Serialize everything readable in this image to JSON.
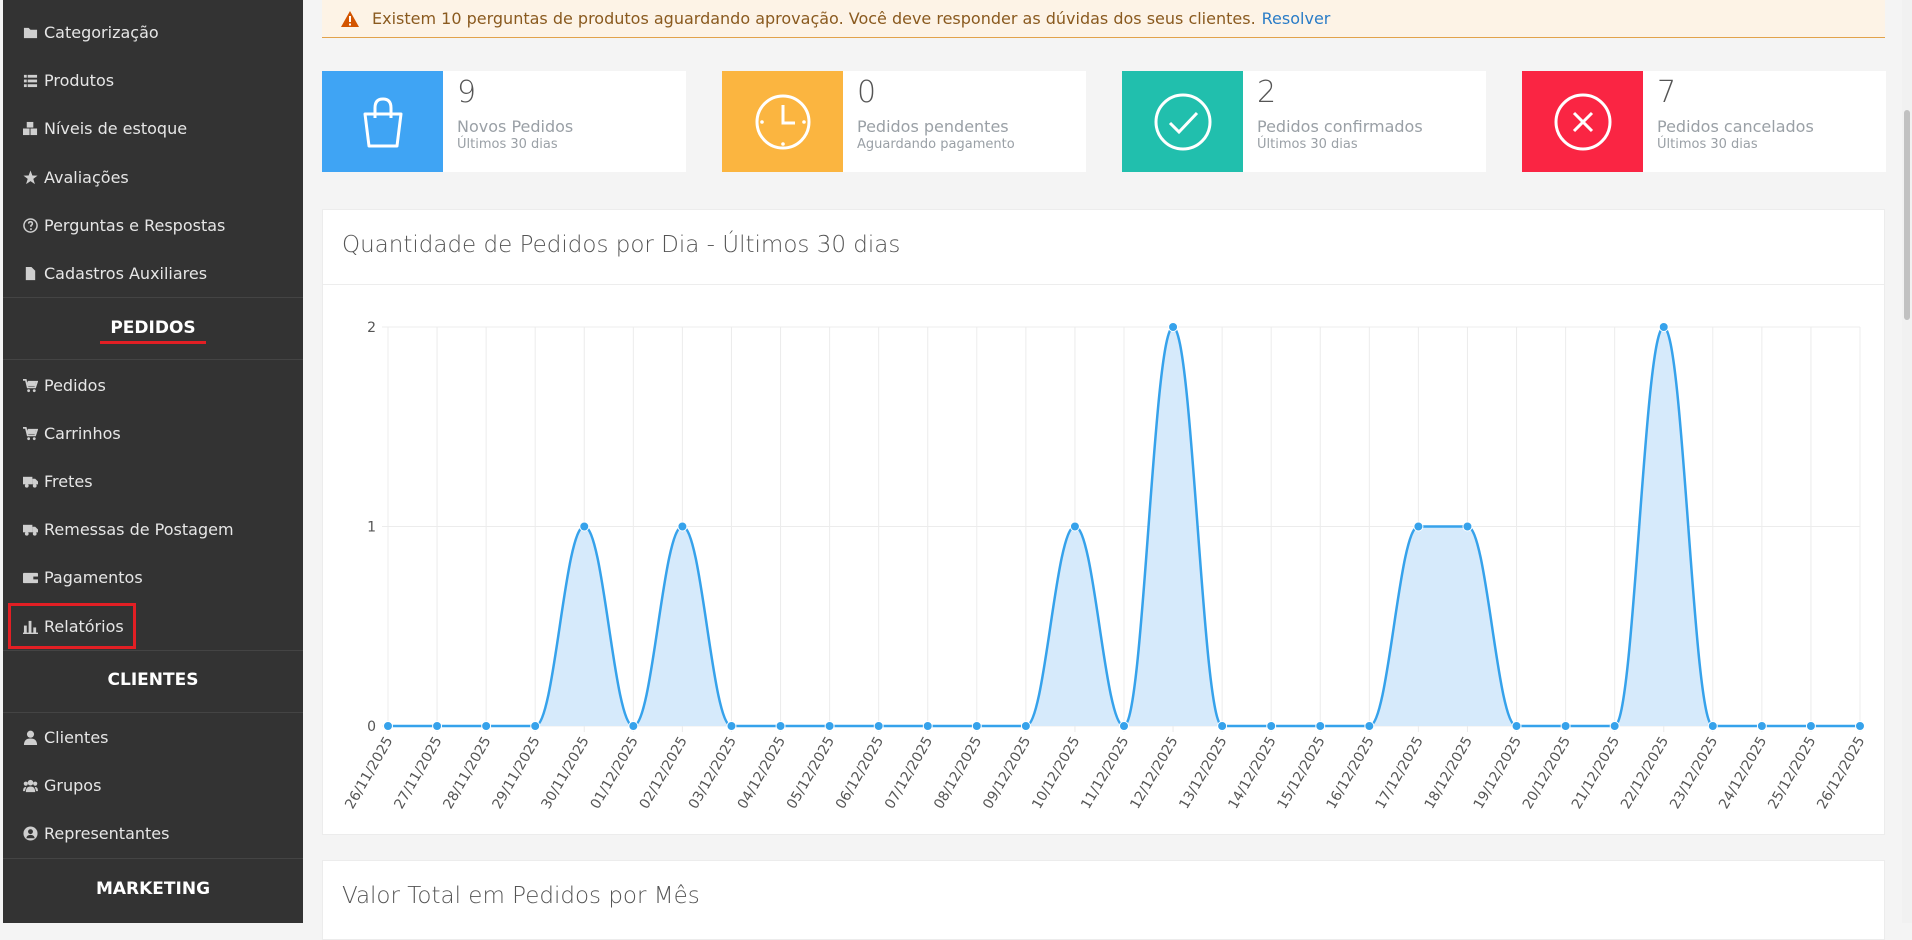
{
  "sidebar": {
    "items_top": [
      {
        "label": "Categorização",
        "icon": "folder-icon"
      },
      {
        "label": "Produtos",
        "icon": "list-icon"
      },
      {
        "label": "Níveis de estoque",
        "icon": "cubes-icon"
      },
      {
        "label": "Avaliações",
        "icon": "star-icon"
      },
      {
        "label": "Perguntas e Respostas",
        "icon": "question-circle-icon"
      },
      {
        "label": "Cadastros Auxiliares",
        "icon": "file-icon"
      }
    ],
    "section_pedidos": "PEDIDOS",
    "items_pedidos": [
      {
        "label": "Pedidos",
        "icon": "cart-icon"
      },
      {
        "label": "Carrinhos",
        "icon": "cart-icon"
      },
      {
        "label": "Fretes",
        "icon": "truck-icon"
      },
      {
        "label": "Remessas de Postagem",
        "icon": "truck-icon"
      },
      {
        "label": "Pagamentos",
        "icon": "wallet-icon"
      },
      {
        "label": "Relatórios",
        "icon": "bar-chart-icon"
      }
    ],
    "section_clientes": "CLIENTES",
    "items_clientes": [
      {
        "label": "Clientes",
        "icon": "user-icon"
      },
      {
        "label": "Grupos",
        "icon": "users-icon"
      },
      {
        "label": "Representantes",
        "icon": "user-circle-icon"
      }
    ],
    "section_marketing": "MARKETING"
  },
  "alert": {
    "text": "Existem 10 perguntas de produtos aguardando aprovação. Você deve responder as dúvidas dos seus clientes.",
    "link": "Resolver",
    "icon": "warning-icon"
  },
  "cards": [
    {
      "value": "9",
      "label": "Novos Pedidos",
      "sub": "Últimos 30 dias",
      "color": "#3fa4f4",
      "icon": "shopping-bag-icon"
    },
    {
      "value": "0",
      "label": "Pedidos pendentes",
      "sub": "Aguardando pagamento",
      "color": "#fbb540",
      "icon": "clock-icon"
    },
    {
      "value": "2",
      "label": "Pedidos confirmados",
      "sub": "Últimos 30 dias",
      "color": "#21bfad",
      "icon": "check-circle-icon"
    },
    {
      "value": "7",
      "label": "Pedidos cancelados",
      "sub": "Últimos 30 dias",
      "color": "#fa2543",
      "icon": "x-circle-icon"
    }
  ],
  "chart_panel": {
    "title": "Quantidade de Pedidos por Dia - Últimos 30 dias"
  },
  "panel2": {
    "title": "Valor Total em Pedidos por Mês"
  },
  "chart_data": {
    "type": "area",
    "title": "Quantidade de Pedidos por Dia - Últimos 30 dias",
    "categories": [
      "26/11/2025",
      "27/11/2025",
      "28/11/2025",
      "29/11/2025",
      "30/11/2025",
      "01/12/2025",
      "02/12/2025",
      "03/12/2025",
      "04/12/2025",
      "05/12/2025",
      "06/12/2025",
      "07/12/2025",
      "08/12/2025",
      "09/12/2025",
      "10/12/2025",
      "11/12/2025",
      "12/12/2025",
      "13/12/2025",
      "14/12/2025",
      "15/12/2025",
      "16/12/2025",
      "17/12/2025",
      "18/12/2025",
      "19/12/2025",
      "20/12/2025",
      "21/12/2025",
      "22/12/2025",
      "23/12/2025",
      "24/12/2025",
      "25/12/2025",
      "26/12/2025"
    ],
    "values": [
      0,
      0,
      0,
      0,
      1,
      0,
      1,
      0,
      0,
      0,
      0,
      0,
      0,
      0,
      1,
      0,
      2,
      0,
      0,
      0,
      0,
      1,
      1,
      0,
      0,
      0,
      2,
      0,
      0,
      0,
      0
    ],
    "yticks": [
      "0",
      "1",
      "2"
    ],
    "ylim": [
      0,
      2
    ],
    "grid": true,
    "color": "#36a2eb",
    "fill": "#d6eafb"
  }
}
